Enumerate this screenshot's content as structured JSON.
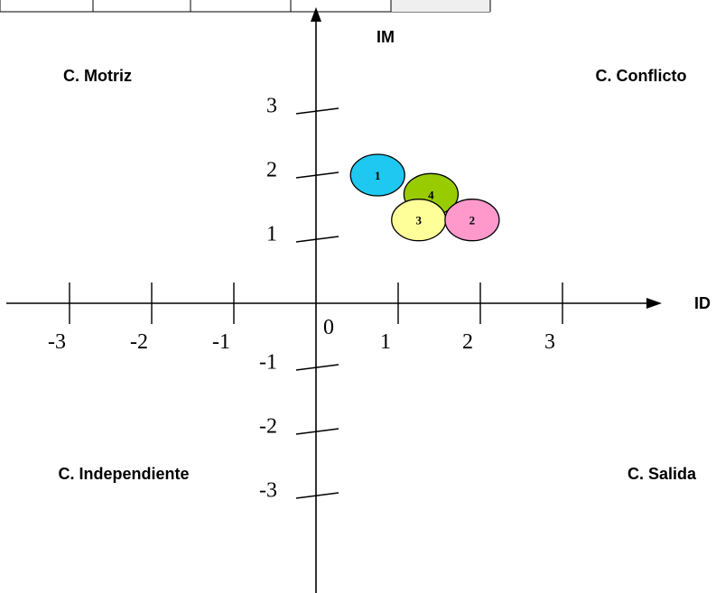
{
  "chart_data": {
    "type": "scatter",
    "x_axis_label": "ID",
    "y_axis_label": "IM",
    "origin_label": "0",
    "x_ticks": [
      {
        "value": -3,
        "label": "-3"
      },
      {
        "value": -2,
        "label": "-2"
      },
      {
        "value": -1,
        "label": "-1"
      },
      {
        "value": 1,
        "label": "1"
      },
      {
        "value": 2,
        "label": "2"
      },
      {
        "value": 3,
        "label": "3"
      }
    ],
    "y_ticks": [
      {
        "value": 3,
        "label": "3"
      },
      {
        "value": 2,
        "label": "2"
      },
      {
        "value": 1,
        "label": "1"
      },
      {
        "value": -1,
        "label": "-1"
      },
      {
        "value": -2,
        "label": "-2"
      },
      {
        "value": -3,
        "label": "-3"
      }
    ],
    "quadrants": [
      {
        "position": "top-left",
        "label": "C. Motriz"
      },
      {
        "position": "top-right",
        "label": "C. Conflicto"
      },
      {
        "position": "bottom-left",
        "label": "C. Independiente"
      },
      {
        "position": "bottom-right",
        "label": "C. Salida"
      }
    ],
    "points": [
      {
        "label": "1",
        "x": 0.75,
        "y": 2.0,
        "color": "#1EC8F0"
      },
      {
        "label": "4",
        "x": 1.4,
        "y": 1.7,
        "color": "#99CC00"
      },
      {
        "label": "3",
        "x": 1.25,
        "y": 1.3,
        "color": "#FFFF99"
      },
      {
        "label": "2",
        "x": 1.9,
        "y": 1.3,
        "color": "#FF99CC"
      }
    ],
    "grid": false
  }
}
